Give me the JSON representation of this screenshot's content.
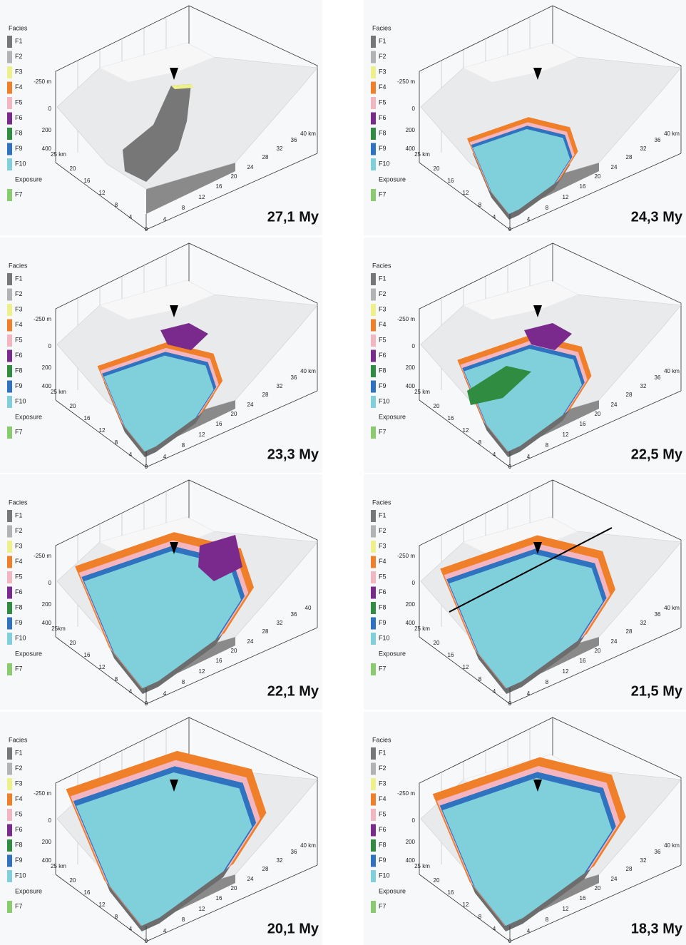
{
  "legend": {
    "title": "Facies",
    "items": [
      {
        "label": "F1",
        "color": "#777777"
      },
      {
        "label": "F2",
        "color": "#b3b3b3"
      },
      {
        "label": "F3",
        "color": "#eef08a"
      },
      {
        "label": "F4",
        "color": "#f07f2a"
      },
      {
        "label": "F5",
        "color": "#f3b6c0"
      },
      {
        "label": "F6",
        "color": "#7a2a8c"
      },
      {
        "label": "F8",
        "color": "#2f8c40"
      },
      {
        "label": "F9",
        "color": "#2f72c0"
      },
      {
        "label": "F10",
        "color": "#80d0dc"
      }
    ],
    "exposure_title": "Exposure",
    "exposure_items": [
      {
        "label": "F7",
        "color": "#8acb6e"
      }
    ]
  },
  "panels": [
    {
      "age": "27,1 My",
      "depth_labels": [
        "-250 m",
        "0",
        "200",
        "400"
      ],
      "y_labels": [
        "25 km",
        "20",
        "16",
        "12",
        "8",
        "4",
        "0"
      ],
      "x_labels": [
        "4",
        "8",
        "12",
        "16",
        "20",
        "24",
        "28",
        "32",
        "36",
        "40 km"
      ]
    },
    {
      "age": "24,3 My",
      "depth_labels": [
        "-250 m",
        "0",
        "200",
        "400"
      ],
      "y_labels": [
        "25 km",
        "20",
        "16",
        "12",
        "8",
        "4",
        "0"
      ],
      "x_labels": [
        "4",
        "8",
        "12",
        "16",
        "20",
        "24",
        "28",
        "32",
        "36",
        "40 km"
      ]
    },
    {
      "age": "23,3 My",
      "depth_labels": [
        "-250 m",
        "0",
        "200",
        "400"
      ],
      "y_labels": [
        "25 km",
        "20",
        "16",
        "12",
        "8",
        "4",
        "0"
      ],
      "x_labels": [
        "4",
        "8",
        "12",
        "16",
        "20",
        "24",
        "28",
        "32",
        "36",
        "40 km"
      ]
    },
    {
      "age": "22,5 My",
      "depth_labels": [
        "-250 m",
        "0",
        "200",
        "400"
      ],
      "y_labels": [
        "25 km",
        "20",
        "16",
        "12",
        "8",
        "4",
        "0"
      ],
      "x_labels": [
        "4",
        "8",
        "12",
        "16",
        "20",
        "24",
        "28",
        "32",
        "36",
        "40 km"
      ]
    },
    {
      "age": "22,1 My",
      "depth_labels": [
        "-250 m",
        "0",
        "200",
        "400"
      ],
      "y_labels": [
        "25km",
        "20",
        "16",
        "12",
        "8",
        "4",
        "0"
      ],
      "x_labels": [
        "4",
        "8",
        "12",
        "16",
        "20",
        "24",
        "28",
        "32",
        "36",
        "40"
      ]
    },
    {
      "age": "21,5 My",
      "depth_labels": [
        "-250 m",
        "0",
        "200",
        "400"
      ],
      "y_labels": [
        "25 km",
        "20",
        "16",
        "12",
        "8",
        "4",
        "0"
      ],
      "x_labels": [
        "4",
        "8",
        "12",
        "16",
        "20",
        "24",
        "28",
        "32",
        "36",
        "40 km"
      ]
    },
    {
      "age": "20,1 My",
      "depth_labels": [
        "-250 m",
        "0",
        "200",
        "400"
      ],
      "y_labels": [
        "25 km",
        "20",
        "16",
        "12",
        "8",
        "4",
        "0"
      ],
      "x_labels": [
        "4",
        "8",
        "12",
        "16",
        "20",
        "24",
        "28",
        "32",
        "36",
        "40 km"
      ]
    },
    {
      "age": "18,3 My",
      "depth_labels": [
        "-250 m",
        "0",
        "200",
        "400"
      ],
      "y_labels": [
        "25 km",
        "20",
        "16",
        "12",
        "8",
        "4",
        "0"
      ],
      "x_labels": [
        "4",
        "8",
        "12",
        "16",
        "20",
        "24",
        "28",
        "32",
        "36",
        "40 km"
      ]
    }
  ]
}
